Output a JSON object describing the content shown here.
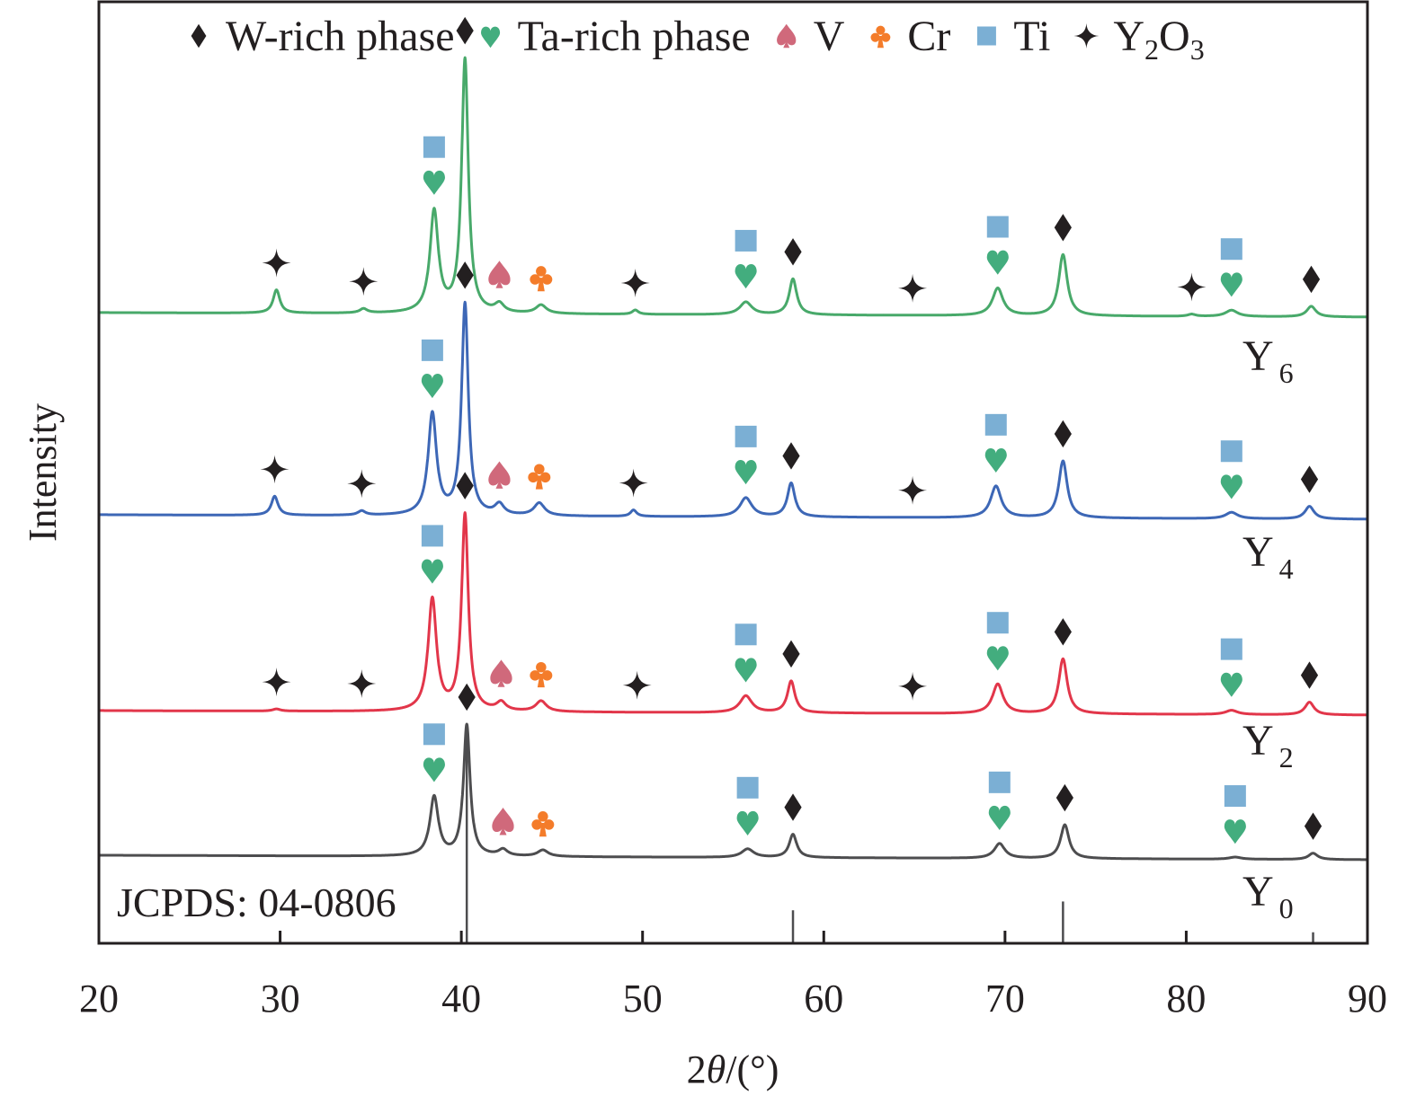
{
  "chart_data": {
    "type": "line",
    "title": "",
    "xlabel_prefix": "2",
    "xlabel_theta": "θ",
    "xlabel_suffix": "/(°)",
    "ylabel": "Intensity",
    "xlim": [
      20,
      90
    ],
    "xticks": [
      20,
      30,
      40,
      50,
      60,
      70,
      80,
      90
    ],
    "xtick_labels": [
      "20",
      "30",
      "40",
      "50",
      "60",
      "70",
      "80",
      "90"
    ],
    "yticks": [],
    "grid": false,
    "legend_position": "top",
    "legend": [
      {
        "key": "W",
        "symbol": "diamond",
        "label": "W-rich phase",
        "color": "#231f20"
      },
      {
        "key": "Ta",
        "symbol": "heart",
        "label": "Ta-rich phase",
        "color": "#43ad7e"
      },
      {
        "key": "V",
        "symbol": "spade",
        "label": "V",
        "color": "#d0697b"
      },
      {
        "key": "Cr",
        "symbol": "club",
        "label": "Cr",
        "color": "#f47c2a"
      },
      {
        "key": "Ti",
        "symbol": "square",
        "label": "Ti",
        "color": "#7bafd4"
      },
      {
        "key": "Y2O3",
        "symbol": "star4",
        "label_main": "Y",
        "label_sub1": "2",
        "label_mid": "O",
        "label_sub2": "3",
        "color": "#231f20"
      }
    ],
    "reference": {
      "label": "JCPDS: 04-0806",
      "lines": [
        {
          "x": 40.3,
          "rel": 1.0
        },
        {
          "x": 58.3,
          "rel": 0.15
        },
        {
          "x": 73.2,
          "rel": 0.19
        },
        {
          "x": 87.0,
          "rel": 0.05
        }
      ]
    },
    "series": [
      {
        "name": "Y0",
        "label_main": "Y",
        "label_sub": "0",
        "color": "#4d4d4f",
        "offset": 0,
        "peaks": [
          {
            "x": 38.5,
            "h": 0.28,
            "w": 0.28
          },
          {
            "x": 40.3,
            "h": 0.62,
            "w": 0.22
          },
          {
            "x": 42.3,
            "h": 0.03,
            "w": 0.3
          },
          {
            "x": 44.5,
            "h": 0.03,
            "w": 0.35
          },
          {
            "x": 55.8,
            "h": 0.04,
            "w": 0.4
          },
          {
            "x": 58.3,
            "h": 0.11,
            "w": 0.25
          },
          {
            "x": 69.7,
            "h": 0.07,
            "w": 0.35
          },
          {
            "x": 73.3,
            "h": 0.16,
            "w": 0.28
          },
          {
            "x": 82.7,
            "h": 0.01,
            "w": 0.4
          },
          {
            "x": 87.0,
            "h": 0.03,
            "w": 0.3
          }
        ],
        "markers": [
          {
            "x": 38.5,
            "symbols": [
              "Ta",
              "Ti"
            ]
          },
          {
            "x": 40.3,
            "symbols": [
              "W"
            ]
          },
          {
            "x": 42.3,
            "symbols": [
              "V"
            ]
          },
          {
            "x": 44.5,
            "symbols": [
              "Cr"
            ]
          },
          {
            "x": 55.8,
            "symbols": [
              "Ta",
              "Ti"
            ]
          },
          {
            "x": 58.3,
            "symbols": [
              "W"
            ]
          },
          {
            "x": 69.7,
            "symbols": [
              "Ta",
              "Ti"
            ]
          },
          {
            "x": 73.3,
            "symbols": [
              "W"
            ]
          },
          {
            "x": 82.7,
            "symbols": [
              "Ta",
              "Ti"
            ]
          },
          {
            "x": 87.0,
            "symbols": [
              "W"
            ]
          }
        ]
      },
      {
        "name": "Y2",
        "label_main": "Y",
        "label_sub": "2",
        "color": "#e2364a",
        "offset": 1,
        "peaks": [
          {
            "x": 29.8,
            "h": 0.01,
            "w": 0.25
          },
          {
            "x": 38.4,
            "h": 0.53,
            "w": 0.28
          },
          {
            "x": 40.2,
            "h": 0.93,
            "w": 0.22
          },
          {
            "x": 42.2,
            "h": 0.04,
            "w": 0.3
          },
          {
            "x": 44.4,
            "h": 0.05,
            "w": 0.35
          },
          {
            "x": 55.7,
            "h": 0.08,
            "w": 0.4
          },
          {
            "x": 58.2,
            "h": 0.15,
            "w": 0.25
          },
          {
            "x": 69.6,
            "h": 0.14,
            "w": 0.35
          },
          {
            "x": 73.2,
            "h": 0.26,
            "w": 0.28
          },
          {
            "x": 82.5,
            "h": 0.02,
            "w": 0.4
          },
          {
            "x": 86.8,
            "h": 0.06,
            "w": 0.3
          }
        ],
        "markers": [
          {
            "x": 29.8,
            "symbols": [
              "Y2O3"
            ]
          },
          {
            "x": 34.5,
            "symbols": [
              "Y2O3"
            ]
          },
          {
            "x": 38.4,
            "symbols": [
              "Ta",
              "Ti"
            ]
          },
          {
            "x": 40.2,
            "symbols": [
              "W"
            ]
          },
          {
            "x": 42.2,
            "symbols": [
              "V"
            ]
          },
          {
            "x": 44.4,
            "symbols": [
              "Cr"
            ]
          },
          {
            "x": 49.7,
            "symbols": [
              "Y2O3"
            ]
          },
          {
            "x": 55.7,
            "symbols": [
              "Ta",
              "Ti"
            ]
          },
          {
            "x": 58.2,
            "symbols": [
              "W"
            ]
          },
          {
            "x": 64.9,
            "symbols": [
              "Y2O3"
            ]
          },
          {
            "x": 69.6,
            "symbols": [
              "Ta",
              "Ti"
            ]
          },
          {
            "x": 73.2,
            "symbols": [
              "W"
            ]
          },
          {
            "x": 82.5,
            "symbols": [
              "Ta",
              "Ti"
            ]
          },
          {
            "x": 86.8,
            "symbols": [
              "W"
            ]
          }
        ]
      },
      {
        "name": "Y4",
        "label_main": "Y",
        "label_sub": "4",
        "color": "#3d67b6",
        "offset": 2,
        "peaks": [
          {
            "x": 29.7,
            "h": 0.09,
            "w": 0.22
          },
          {
            "x": 34.5,
            "h": 0.02,
            "w": 0.25
          },
          {
            "x": 38.4,
            "h": 0.48,
            "w": 0.28
          },
          {
            "x": 40.2,
            "h": 1.0,
            "w": 0.22
          },
          {
            "x": 42.1,
            "h": 0.05,
            "w": 0.3
          },
          {
            "x": 44.3,
            "h": 0.06,
            "w": 0.35
          },
          {
            "x": 49.5,
            "h": 0.03,
            "w": 0.2
          },
          {
            "x": 55.7,
            "h": 0.09,
            "w": 0.4
          },
          {
            "x": 58.2,
            "h": 0.16,
            "w": 0.25
          },
          {
            "x": 69.5,
            "h": 0.15,
            "w": 0.35
          },
          {
            "x": 73.2,
            "h": 0.27,
            "w": 0.28
          },
          {
            "x": 82.5,
            "h": 0.03,
            "w": 0.4
          },
          {
            "x": 86.8,
            "h": 0.06,
            "w": 0.3
          }
        ],
        "markers": [
          {
            "x": 29.7,
            "symbols": [
              "Y2O3"
            ]
          },
          {
            "x": 34.5,
            "symbols": [
              "Y2O3"
            ]
          },
          {
            "x": 38.4,
            "symbols": [
              "Ta",
              "Ti"
            ]
          },
          {
            "x": 40.2,
            "symbols": [
              "W"
            ]
          },
          {
            "x": 42.1,
            "symbols": [
              "V"
            ]
          },
          {
            "x": 44.3,
            "symbols": [
              "Cr"
            ]
          },
          {
            "x": 49.5,
            "symbols": [
              "Y2O3"
            ]
          },
          {
            "x": 55.7,
            "symbols": [
              "Ta",
              "Ti"
            ]
          },
          {
            "x": 58.2,
            "symbols": [
              "W"
            ]
          },
          {
            "x": 64.9,
            "symbols": [
              "Y2O3"
            ]
          },
          {
            "x": 69.5,
            "symbols": [
              "Ta",
              "Ti"
            ]
          },
          {
            "x": 73.2,
            "symbols": [
              "W"
            ]
          },
          {
            "x": 82.5,
            "symbols": [
              "Ta",
              "Ti"
            ]
          },
          {
            "x": 86.8,
            "symbols": [
              "W"
            ]
          }
        ]
      },
      {
        "name": "Y6",
        "label_main": "Y",
        "label_sub": "6",
        "color": "#48a96a",
        "offset": 3,
        "peaks": [
          {
            "x": 29.8,
            "h": 0.11,
            "w": 0.22
          },
          {
            "x": 34.6,
            "h": 0.02,
            "w": 0.25
          },
          {
            "x": 38.5,
            "h": 0.48,
            "w": 0.28
          },
          {
            "x": 40.2,
            "h": 1.2,
            "w": 0.22
          },
          {
            "x": 42.1,
            "h": 0.04,
            "w": 0.3
          },
          {
            "x": 44.4,
            "h": 0.04,
            "w": 0.35
          },
          {
            "x": 49.6,
            "h": 0.02,
            "w": 0.2
          },
          {
            "x": 55.7,
            "h": 0.06,
            "w": 0.4
          },
          {
            "x": 58.3,
            "h": 0.17,
            "w": 0.25
          },
          {
            "x": 69.6,
            "h": 0.13,
            "w": 0.35
          },
          {
            "x": 73.2,
            "h": 0.29,
            "w": 0.28
          },
          {
            "x": 80.3,
            "h": 0.01,
            "w": 0.25
          },
          {
            "x": 82.5,
            "h": 0.03,
            "w": 0.4
          },
          {
            "x": 86.9,
            "h": 0.05,
            "w": 0.3
          }
        ],
        "markers": [
          {
            "x": 29.8,
            "symbols": [
              "Y2O3"
            ]
          },
          {
            "x": 34.6,
            "symbols": [
              "Y2O3"
            ]
          },
          {
            "x": 38.5,
            "symbols": [
              "Ta",
              "Ti"
            ]
          },
          {
            "x": 40.2,
            "symbols": [
              "W"
            ]
          },
          {
            "x": 42.1,
            "symbols": [
              "V"
            ]
          },
          {
            "x": 44.4,
            "symbols": [
              "Cr"
            ]
          },
          {
            "x": 49.6,
            "symbols": [
              "Y2O3"
            ]
          },
          {
            "x": 55.7,
            "symbols": [
              "Ta",
              "Ti"
            ]
          },
          {
            "x": 58.3,
            "symbols": [
              "W"
            ]
          },
          {
            "x": 64.9,
            "symbols": [
              "Y2O3"
            ]
          },
          {
            "x": 69.6,
            "symbols": [
              "Ta",
              "Ti"
            ]
          },
          {
            "x": 73.2,
            "symbols": [
              "W"
            ]
          },
          {
            "x": 80.3,
            "symbols": [
              "Y2O3"
            ]
          },
          {
            "x": 82.5,
            "symbols": [
              "Ta",
              "Ti"
            ]
          },
          {
            "x": 86.9,
            "symbols": [
              "W"
            ]
          }
        ]
      }
    ]
  }
}
